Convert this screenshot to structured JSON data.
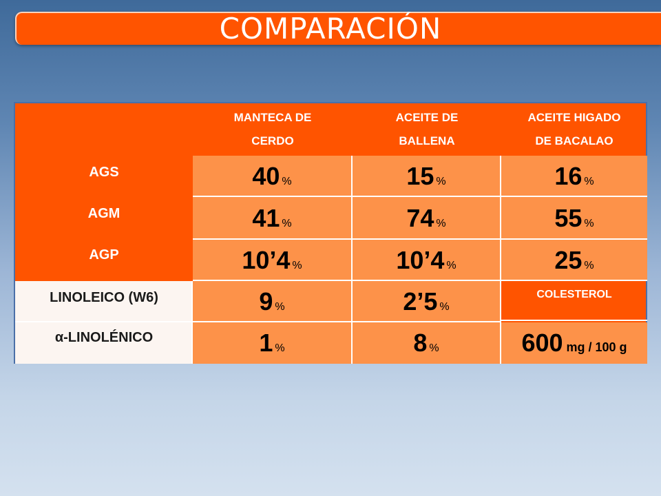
{
  "title": "COMPARACIÓN",
  "columns": [
    {
      "line1": "MANTECA DE",
      "line2": "CERDO"
    },
    {
      "line1": "ACEITE DE",
      "line2": "BALLENA"
    },
    {
      "line1": "ACEITE HIGADO",
      "line2": "DE BACALAO"
    }
  ],
  "rows": [
    {
      "label": "AGS",
      "values": [
        {
          "num": "40",
          "unit": "%"
        },
        {
          "num": "15",
          "unit": "%"
        },
        {
          "num": "16",
          "unit": "%"
        }
      ]
    },
    {
      "label": "AGM",
      "values": [
        {
          "num": "41",
          "unit": "%"
        },
        {
          "num": "74",
          "unit": "%"
        },
        {
          "num": "55",
          "unit": "%"
        }
      ]
    },
    {
      "label": "AGP",
      "values": [
        {
          "num": "10’4",
          "unit": "%"
        },
        {
          "num": "10’4",
          "unit": "%"
        },
        {
          "num": "25",
          "unit": "%"
        }
      ]
    },
    {
      "label": "LINOLEICO (W6)",
      "values": [
        {
          "num": "9",
          "unit": "%"
        },
        {
          "num": "2’5",
          "unit": "%"
        }
      ]
    },
    {
      "label": "α-LINOLÉNICO",
      "values": [
        {
          "num": "1",
          "unit": "%"
        },
        {
          "num": "8",
          "unit": "%"
        }
      ]
    }
  ],
  "colesterol": {
    "label": "COLESTEROL",
    "num": "600",
    "unit": "mg / 100 g"
  }
}
